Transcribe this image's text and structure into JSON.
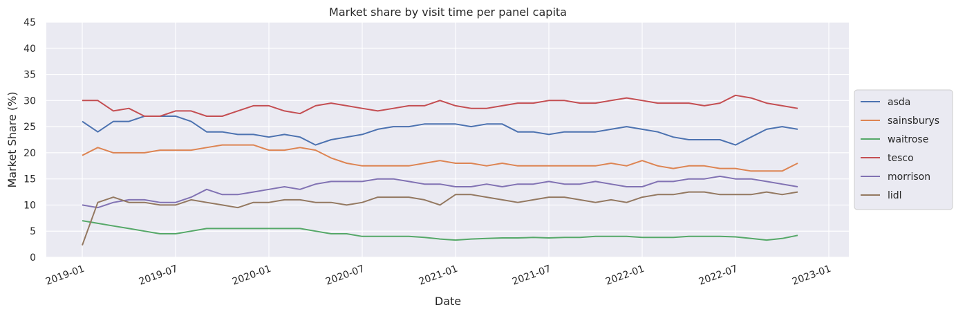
{
  "chart_data": {
    "type": "line",
    "title": "Market share by visit time per panel capita",
    "xlabel": "Date",
    "ylabel": "Market Share (%)",
    "ylim": [
      0,
      45
    ],
    "yticks": [
      "0",
      "5",
      "10",
      "15",
      "20",
      "25",
      "30",
      "35",
      "40",
      "45"
    ],
    "xticks": [
      "2019-01",
      "2019-07",
      "2020-01",
      "2020-07",
      "2021-01",
      "2021-07",
      "2022-01",
      "2022-07",
      "2023-01"
    ],
    "x_start": "2019-01",
    "x_step": "1 month",
    "grid": true,
    "legend_position": "right",
    "series": [
      {
        "name": "asda",
        "color": "#4c72b0",
        "values": [
          26,
          24,
          26,
          26,
          27,
          27,
          27,
          26,
          24,
          24,
          23.5,
          23.5,
          23,
          23.5,
          23,
          21.5,
          22.5,
          23,
          23.5,
          24.5,
          25,
          25,
          25.5,
          25.5,
          25.5,
          25,
          25.5,
          25.5,
          24,
          24,
          23.5,
          24,
          24,
          24,
          24.5,
          25,
          24.5,
          24,
          23,
          22.5,
          22.5,
          22.5,
          21.5,
          23,
          24.5,
          25,
          24.5
        ]
      },
      {
        "name": "sainsburys",
        "color": "#dd8452",
        "values": [
          19.5,
          21,
          20,
          20,
          20,
          20.5,
          20.5,
          20.5,
          21,
          21.5,
          21.5,
          21.5,
          20.5,
          20.5,
          21,
          20.5,
          19,
          18,
          17.5,
          17.5,
          17.5,
          17.5,
          18,
          18.5,
          18,
          18,
          17.5,
          18,
          17.5,
          17.5,
          17.5,
          17.5,
          17.5,
          17.5,
          18,
          17.5,
          18.5,
          17.5,
          17,
          17.5,
          17.5,
          17,
          17,
          16.5,
          16.5,
          16.5,
          18
        ]
      },
      {
        "name": "waitrose",
        "color": "#55a868",
        "values": [
          7,
          6.5,
          6,
          5.5,
          5,
          4.5,
          4.5,
          5,
          5.5,
          5.5,
          5.5,
          5.5,
          5.5,
          5.5,
          5.5,
          5,
          4.5,
          4.5,
          4,
          4,
          4,
          4,
          3.8,
          3.5,
          3.3,
          3.5,
          3.6,
          3.7,
          3.7,
          3.8,
          3.7,
          3.8,
          3.8,
          4,
          4,
          4,
          3.8,
          3.8,
          3.8,
          4,
          4,
          4,
          3.9,
          3.6,
          3.3,
          3.6,
          4.2
        ]
      },
      {
        "name": "tesco",
        "color": "#c44e52",
        "values": [
          30,
          30,
          28,
          28.5,
          27,
          27,
          28,
          28,
          27,
          27,
          28,
          29,
          29,
          28,
          27.5,
          29,
          29.5,
          29,
          28.5,
          28,
          28.5,
          29,
          29,
          30,
          29,
          28.5,
          28.5,
          29,
          29.5,
          29.5,
          30,
          30,
          29.5,
          29.5,
          30,
          30.5,
          30,
          29.5,
          29.5,
          29.5,
          29,
          29.5,
          31,
          30.5,
          29.5,
          29,
          28.5
        ]
      },
      {
        "name": "morrison",
        "color": "#8172b3",
        "values": [
          10,
          9.5,
          10.5,
          11,
          11,
          10.5,
          10.5,
          11.5,
          13,
          12,
          12,
          12.5,
          13,
          13.5,
          13,
          14,
          14.5,
          14.5,
          14.5,
          15,
          15,
          14.5,
          14,
          14,
          13.5,
          13.5,
          14,
          13.5,
          14,
          14,
          14.5,
          14,
          14,
          14.5,
          14,
          13.5,
          13.5,
          14.5,
          14.5,
          15,
          15,
          15.5,
          15,
          15,
          14.5,
          14,
          13.5
        ]
      },
      {
        "name": "lidl",
        "color": "#937860",
        "values": [
          2.3,
          10.5,
          11.5,
          10.5,
          10.5,
          10,
          10,
          11,
          10.5,
          10,
          9.5,
          10.5,
          10.5,
          11,
          11,
          10.5,
          10.5,
          10,
          10.5,
          11.5,
          11.5,
          11.5,
          11,
          10,
          12,
          12,
          11.5,
          11,
          10.5,
          11,
          11.5,
          11.5,
          11,
          10.5,
          11,
          10.5,
          11.5,
          12,
          12,
          12.5,
          12.5,
          12,
          12,
          12,
          12.5,
          12,
          12.5
        ]
      }
    ]
  }
}
